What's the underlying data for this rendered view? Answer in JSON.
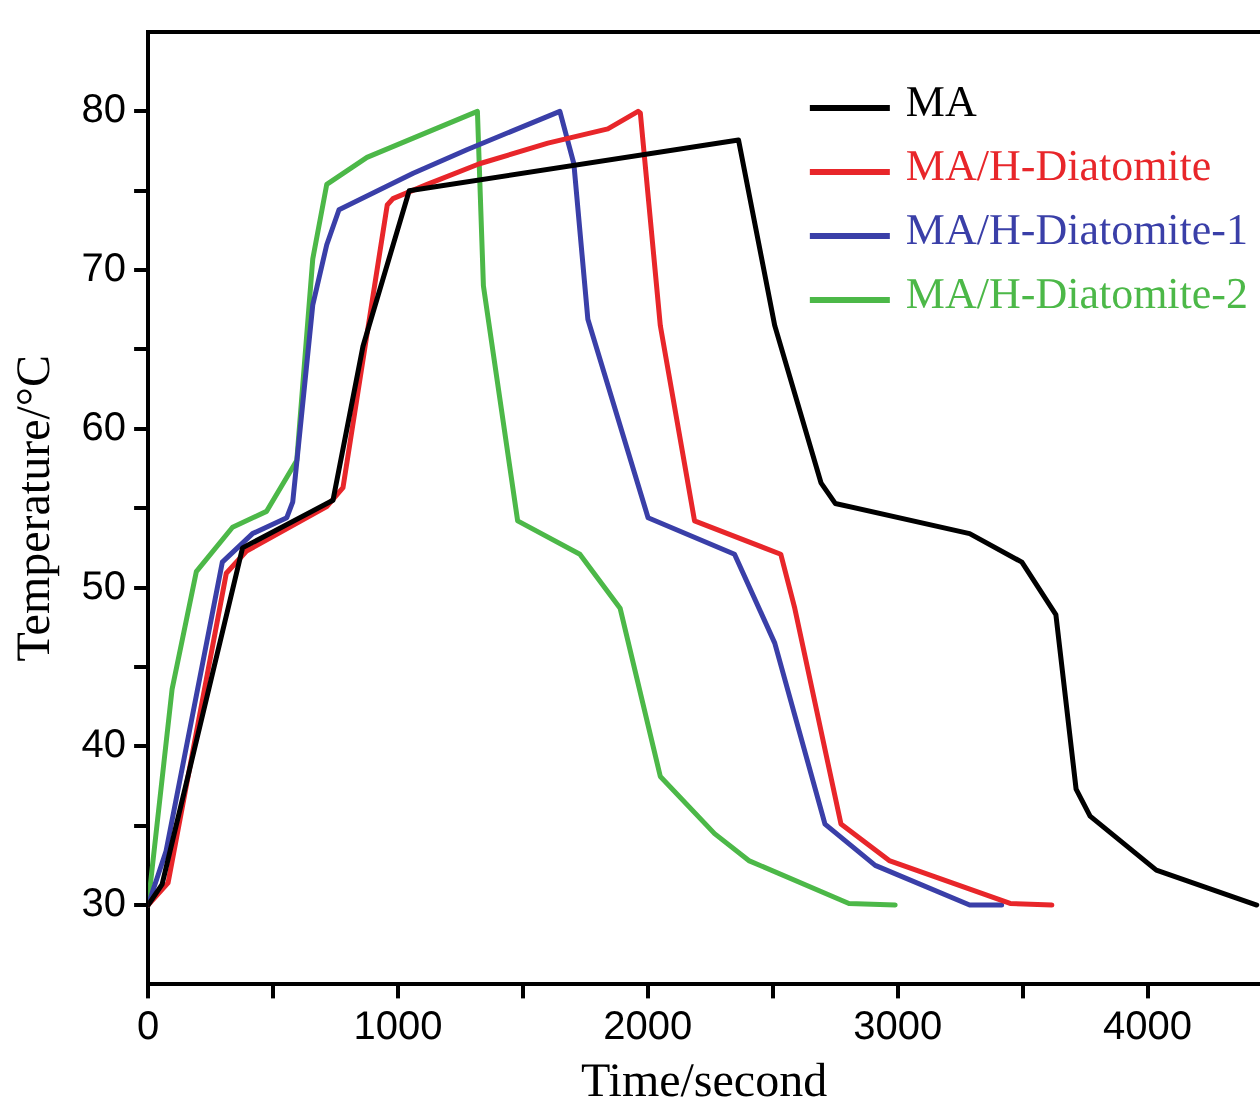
{
  "chart_data": {
    "type": "line",
    "xlabel": "Time/second",
    "ylabel": "Temperature/°C",
    "xlim": [
      0,
      4450
    ],
    "ylim": [
      25,
      85
    ],
    "xticks": [
      0,
      {
        "value": 500,
        "label": null
      },
      1000,
      {
        "value": 1500,
        "label": null
      },
      2000,
      {
        "value": 2500,
        "label": null
      },
      3000,
      {
        "value": 3500,
        "label": null
      },
      4000
    ],
    "yticks": [
      30,
      {
        "value": 35,
        "label": null
      },
      40,
      {
        "value": 45,
        "label": null
      },
      50,
      {
        "value": 55,
        "label": null
      },
      60,
      {
        "value": 65,
        "label": null
      },
      70,
      {
        "value": 75,
        "label": null
      },
      80
    ],
    "grid": false,
    "legend": "top right",
    "marker": "none",
    "line_style": "solid",
    "series": [
      {
        "name": "MA",
        "color": "#000000",
        "x": [
          0,
          56,
          378,
          740,
          860,
          1045,
          2363,
          2508,
          2693,
          2750,
          3288,
          3497,
          3633,
          3714,
          3770,
          4035,
          4437
        ],
        "values": [
          30,
          31.3,
          52.5,
          55.5,
          65.2,
          75,
          78.2,
          66.5,
          56.6,
          55.3,
          53.4,
          51.6,
          48.3,
          37.3,
          35.6,
          32.2,
          30
        ]
      },
      {
        "name": "MA/H-Diatomite",
        "color": "#e8262a",
        "x": [
          0,
          80,
          313,
          394,
          715,
          780,
          957,
          980,
          1117,
          1326,
          1600,
          1840,
          1961,
          1970,
          2050,
          2187,
          2532,
          2588,
          2773,
          2966,
          3450,
          3617
        ],
        "values": [
          30,
          31.4,
          50.9,
          52.3,
          55.1,
          56.3,
          74.1,
          74.5,
          75.4,
          76.7,
          78,
          78.9,
          80,
          79.9,
          66.5,
          54.2,
          52.1,
          48.7,
          35.1,
          32.8,
          30.1,
          30
        ]
      },
      {
        "name": "MA/H-Diatomite-1",
        "color": "#3a3fa8",
        "x": [
          0,
          72,
          297,
          418,
          555,
          579,
          659,
          715,
          764,
          1061,
          1278,
          1648,
          1704,
          1760,
          2001,
          2347,
          2508,
          2709,
          2910,
          3288,
          3416
        ],
        "values": [
          30,
          33.4,
          51.6,
          53.4,
          54.4,
          55.4,
          67.8,
          71.6,
          73.8,
          76.1,
          77.6,
          80,
          76.7,
          66.9,
          54.4,
          52.1,
          46.5,
          35.1,
          32.5,
          30,
          30
        ]
      },
      {
        "name": "MA/H-Diatomite-2",
        "color": "#4cb848",
        "x": [
          0,
          96,
          193,
          338,
          474,
          595,
          659,
          715,
          876,
          1318,
          1342,
          1479,
          1728,
          1889,
          2050,
          2267,
          2404,
          2805,
          2990
        ],
        "values": [
          30,
          43.6,
          51,
          53.8,
          54.8,
          58,
          70.7,
          75.4,
          77.1,
          80,
          69,
          54.2,
          52.1,
          48.7,
          38.1,
          34.5,
          32.8,
          30.1,
          30
        ]
      }
    ]
  }
}
